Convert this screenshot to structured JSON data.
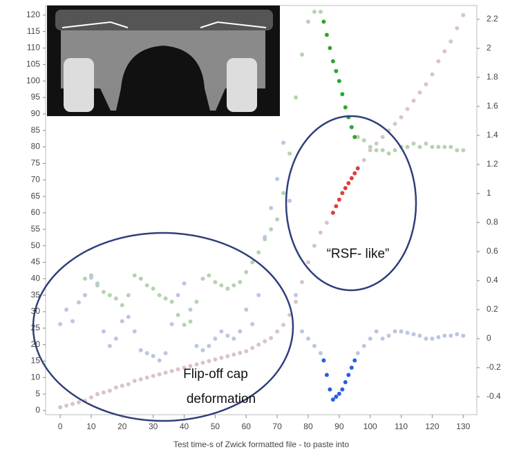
{
  "chart_data": {
    "type": "scatter",
    "x_label": "Test time-s of Zwick formatted file - to paste into",
    "xlim": [
      -4.7,
      134.4
    ],
    "ylim": [
      -1.25,
      122.9
    ],
    "y2lim": [
      -0.524,
      2.295
    ],
    "xticks": [
      0,
      10,
      20,
      30,
      40,
      50,
      60,
      70,
      80,
      90,
      100,
      110,
      120,
      130
    ],
    "yticks": [
      0,
      5,
      10,
      15,
      20,
      25,
      30,
      35,
      40,
      45,
      50,
      55,
      60,
      65,
      70,
      75,
      80,
      85,
      90,
      95,
      100,
      105,
      110,
      115,
      120
    ],
    "y2ticks": [
      -0.4,
      -0.2,
      0,
      0.2,
      0.4,
      0.6,
      0.8,
      1,
      1.2,
      1.4,
      1.6,
      1.8,
      2,
      2.2
    ],
    "annotations": [
      {
        "text": "“RSF- like”"
      },
      {
        "lines": [
          "Flip-off cap",
          "deformation"
        ]
      }
    ],
    "series": [
      {
        "color": "#dcc4c4",
        "x": [
          0,
          2,
          4,
          6,
          8,
          10,
          12,
          14,
          16,
          18,
          20,
          22,
          24,
          26,
          28,
          30,
          32,
          34,
          36,
          38,
          40,
          42,
          44,
          46,
          48,
          50,
          52,
          54,
          56,
          58,
          60,
          62,
          64,
          66,
          68,
          70,
          72,
          74,
          76,
          78,
          80,
          82,
          84,
          86,
          98,
          100,
          102,
          104,
          106,
          108,
          110,
          112,
          114,
          116,
          118,
          120,
          122,
          124,
          126,
          128,
          130
        ],
        "values": [
          1,
          1.5,
          2,
          2.5,
          3,
          4,
          5,
          5.5,
          6,
          7,
          7.5,
          8,
          9,
          9.5,
          10,
          10.5,
          11,
          11.5,
          12,
          12.5,
          13,
          13.5,
          14,
          14.5,
          15,
          15.5,
          16,
          16.5,
          17,
          17.5,
          18,
          19,
          20,
          21,
          22,
          24,
          26,
          29,
          33,
          39,
          45,
          50,
          54,
          57,
          76,
          79,
          81,
          83,
          85,
          87,
          89,
          91.5,
          94,
          96.5,
          99,
          102,
          106,
          109,
          112,
          116,
          120
        ]
      },
      {
        "color": "#e23c3c",
        "x": [
          88,
          89,
          90,
          91,
          92,
          93,
          94,
          95,
          96
        ],
        "values": [
          60,
          62,
          64,
          66,
          67.5,
          69,
          70.5,
          72,
          73.5
        ]
      },
      {
        "color": "#b5d3b0",
        "x": [
          8,
          10,
          12,
          14,
          16,
          18,
          20,
          22,
          24,
          26,
          28,
          30,
          32,
          34,
          36,
          38,
          40,
          42,
          44,
          46,
          48,
          50,
          52,
          54,
          56,
          58,
          60,
          62,
          64,
          66,
          68,
          70,
          72,
          74,
          76,
          78,
          80,
          82,
          84,
          96,
          98,
          100,
          102,
          104,
          106,
          108,
          110,
          112,
          114,
          116,
          118,
          120,
          122,
          124,
          126,
          128,
          130
        ],
        "values": [
          40,
          41,
          38,
          36,
          35,
          34,
          32,
          35,
          41,
          40,
          38,
          37,
          35,
          34,
          33,
          29,
          26,
          27,
          33,
          40,
          41,
          39,
          38,
          37,
          38,
          39,
          42,
          45,
          48,
          52,
          55,
          58,
          66,
          78,
          95,
          108,
          118,
          121,
          121,
          83,
          82,
          80,
          79,
          79,
          78,
          79,
          80,
          80,
          81,
          80,
          81,
          80,
          80,
          80,
          80,
          79,
          79
        ]
      },
      {
        "color": "#2fa52f",
        "x": [
          85,
          86,
          87,
          88,
          89,
          90,
          91,
          92,
          93,
          94,
          95
        ],
        "values": [
          118,
          114,
          110,
          106,
          103,
          100,
          96,
          92,
          89,
          86,
          83
        ]
      },
      {
        "color": "#bcc6e0",
        "axis": "y2",
        "x": [
          0,
          2,
          4,
          6,
          8,
          10,
          12,
          14,
          16,
          18,
          20,
          22,
          24,
          26,
          28,
          30,
          32,
          34,
          36,
          38,
          40,
          42,
          44,
          46,
          48,
          50,
          52,
          54,
          56,
          58,
          60,
          62,
          64,
          66,
          68,
          70,
          72,
          74,
          76,
          78,
          80,
          82,
          84,
          96,
          98,
          100,
          102,
          104,
          106,
          108,
          110,
          112,
          114,
          116,
          118,
          120,
          122,
          124,
          126,
          128,
          130
        ],
        "values": [
          0.1,
          0.2,
          0.12,
          0.25,
          0.3,
          0.42,
          0.38,
          0.05,
          -0.05,
          0,
          0.12,
          0.15,
          0.05,
          -0.08,
          -0.1,
          -0.12,
          -0.15,
          -0.1,
          0.1,
          0.3,
          0.38,
          0.2,
          -0.05,
          -0.08,
          -0.05,
          0,
          0.05,
          0.02,
          0,
          0.05,
          0.2,
          0.1,
          0.3,
          0.7,
          0.9,
          1.1,
          1.35,
          0.95,
          0.3,
          0.05,
          0,
          -0.05,
          -0.1,
          -0.1,
          -0.05,
          0,
          0.05,
          0,
          0.02,
          0.05,
          0.05,
          0.04,
          0.03,
          0.02,
          0,
          0,
          0.01,
          0.02,
          0.02,
          0.03,
          0.02
        ]
      },
      {
        "color": "#2a5ee0",
        "axis": "y2",
        "x": [
          85,
          86,
          87,
          88,
          89,
          90,
          91,
          92,
          93,
          94,
          95
        ],
        "values": [
          -0.15,
          -0.25,
          -0.35,
          -0.42,
          -0.4,
          -0.38,
          -0.35,
          -0.3,
          -0.25,
          -0.2,
          -0.15
        ]
      }
    ]
  }
}
